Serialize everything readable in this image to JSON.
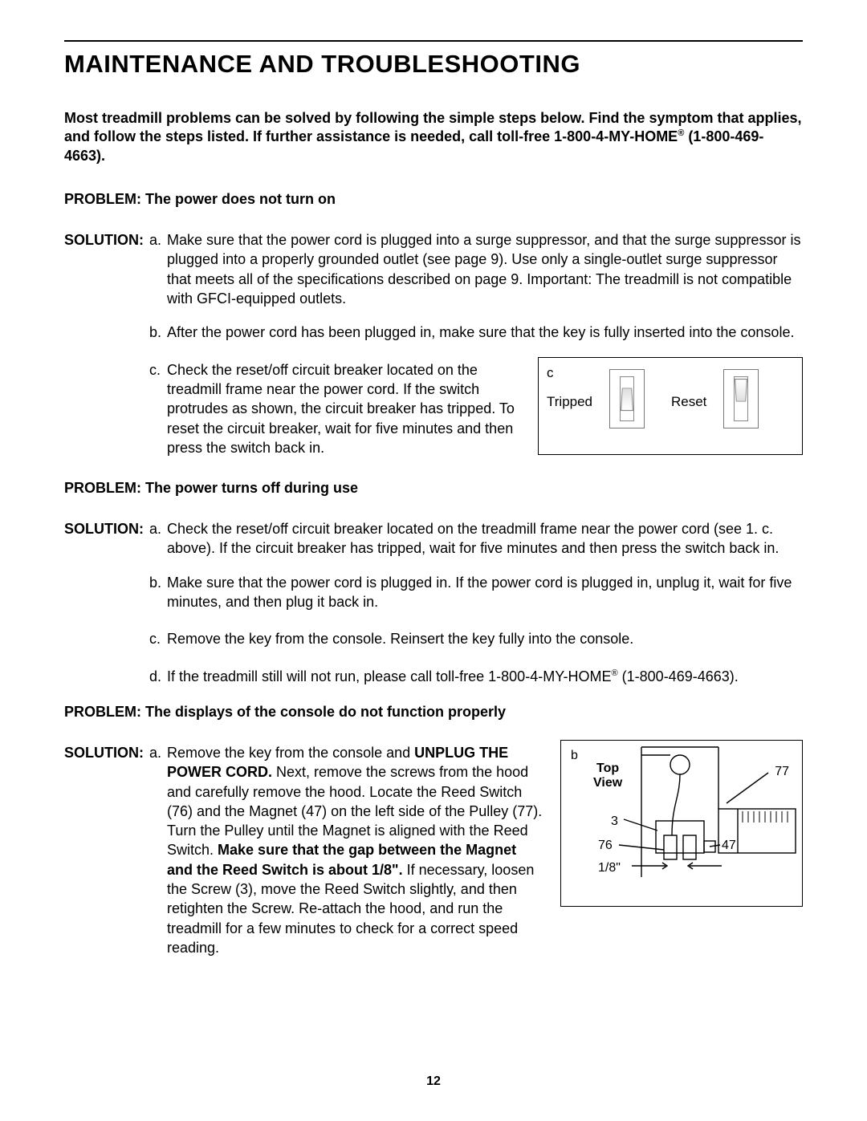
{
  "title": "MAINTENANCE AND TROUBLESHOOTING",
  "intro_1": "Most treadmill problems can be solved by following the simple steps below. Find the symptom that applies, and follow the steps listed. If further assistance is needed, call toll-free 1-800-4-MY-HOME",
  "intro_sup": "®",
  "intro_2": " (1-800-469-4663).",
  "p1": {
    "problem": "PROBLEM:  The power does not turn on",
    "solution_label": "SOLUTION:",
    "a_letter": "a.",
    "a": "Make sure that the power cord is plugged into a surge suppressor, and that the surge suppressor is plugged into a properly grounded outlet (see page 9). Use only a single-outlet surge suppressor that meets all of the specifications described on page 9. Important: The treadmill is not compatible with GFCI-equipped outlets.",
    "b_letter": "b.",
    "b": "After the power cord has been plugged in, make sure that the key is fully inserted into the console.",
    "c_letter": "c.",
    "c": "Check the reset/off circuit breaker located on the treadmill frame near the power cord. If the switch protrudes as shown, the circuit breaker has tripped. To reset the circuit breaker, wait for five minutes and then press the switch back in."
  },
  "fig_c": {
    "label": "c",
    "tripped": "Tripped",
    "reset": "Reset"
  },
  "p2": {
    "problem": "PROBLEM:  The power turns off during use",
    "solution_label": "SOLUTION:",
    "a_letter": "a.",
    "a": "Check the reset/off circuit breaker located on the treadmill frame near the power cord (see 1. c. above). If the circuit breaker has tripped, wait for five minutes and then press the switch back in.",
    "b_letter": "b.",
    "b": " Make sure that the power cord is plugged in. If the power cord is plugged in, unplug it, wait for five minutes, and then plug it back in.",
    "c_letter": "c.",
    "c": "Remove the key from the console. Reinsert the key fully into the console.",
    "d_letter": "d.",
    "d_1": " If the treadmill still will not run, please call toll-free 1-800-4-MY-HOME",
    "d_sup": "®",
    "d_2": " (1-800-469-4663)."
  },
  "p3": {
    "problem": "PROBLEM:  The displays of the console do not function properly",
    "solution_label": "SOLUTION:",
    "a_letter": "a.",
    "a_1": "Remove the key from the console and ",
    "a_bold1": "UNPLUG THE POWER CORD.",
    "a_2": " Next, remove the screws from the hood and carefully remove the hood. Locate the Reed Switch (76) and the Magnet (47) on the left side of the Pulley (77). Turn the Pulley until the Magnet is aligned with the Reed Switch. ",
    "a_bold2": "Make sure that the gap between the Magnet and the Reed Switch is about 1/8\".",
    "a_3": " If necessary, loosen the Screw (3), move the Reed Switch slightly, and then retighten the Screw. Re-attach the hood, and run the treadmill for a few minutes to check for a correct speed reading."
  },
  "fig_b": {
    "label": "b",
    "topview": "Top View",
    "n77": "77",
    "n3": "3",
    "n76": "76",
    "n47": "47",
    "gap": "1/8\""
  },
  "page_number": "12"
}
